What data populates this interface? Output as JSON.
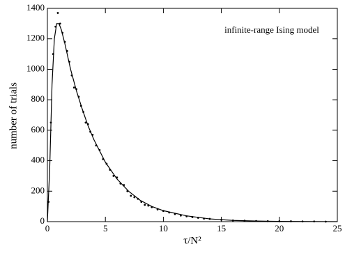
{
  "chart_data": {
    "type": "scatter",
    "annotation": "infinite-range Ising model",
    "xlabel": "τ/N²",
    "ylabel": "number of trials",
    "xlim": [
      0,
      25
    ],
    "ylim": [
      0,
      1400
    ],
    "xticks": [
      0,
      5,
      10,
      15,
      20,
      25
    ],
    "yticks": [
      0,
      200,
      400,
      600,
      800,
      1000,
      1200,
      1400
    ],
    "color": "#000000",
    "points": {
      "x": [
        0.1,
        0.3,
        0.5,
        0.7,
        0.9,
        1.1,
        1.3,
        1.5,
        1.7,
        1.9,
        2.1,
        2.3,
        2.5,
        2.7,
        2.9,
        3.1,
        3.3,
        3.5,
        3.7,
        3.9,
        4.2,
        4.5,
        4.8,
        5.1,
        5.4,
        5.7,
        6.0,
        6.3,
        6.6,
        6.9,
        7.2,
        7.5,
        7.8,
        8.1,
        8.4,
        8.7,
        9.0,
        9.5,
        10,
        10.5,
        11,
        11.5,
        12,
        12.5,
        13,
        13.5,
        14,
        15,
        16,
        17,
        18,
        19,
        20,
        21,
        22,
        23,
        24
      ],
      "y": [
        130,
        650,
        1100,
        1280,
        1370,
        1300,
        1240,
        1180,
        1120,
        1050,
        960,
        880,
        870,
        820,
        760,
        720,
        650,
        640,
        590,
        570,
        500,
        470,
        410,
        380,
        340,
        300,
        290,
        250,
        240,
        200,
        170,
        160,
        150,
        130,
        110,
        105,
        95,
        80,
        70,
        60,
        50,
        40,
        35,
        30,
        25,
        20,
        18,
        12,
        8,
        6,
        4,
        3,
        2,
        2,
        1,
        1,
        0
      ]
    },
    "fit": {
      "x": [
        0,
        0.2,
        0.4,
        0.6,
        0.8,
        1.0,
        1.2,
        1.5,
        2,
        2.5,
        3,
        3.5,
        4,
        5,
        6,
        7,
        8,
        9,
        10,
        12,
        14,
        16,
        18,
        20,
        25
      ],
      "y": [
        0,
        350,
        900,
        1200,
        1300,
        1300,
        1260,
        1170,
        1000,
        860,
        740,
        630,
        540,
        390,
        280,
        200,
        140,
        100,
        72,
        38,
        18,
        8,
        4,
        2,
        0
      ]
    }
  }
}
